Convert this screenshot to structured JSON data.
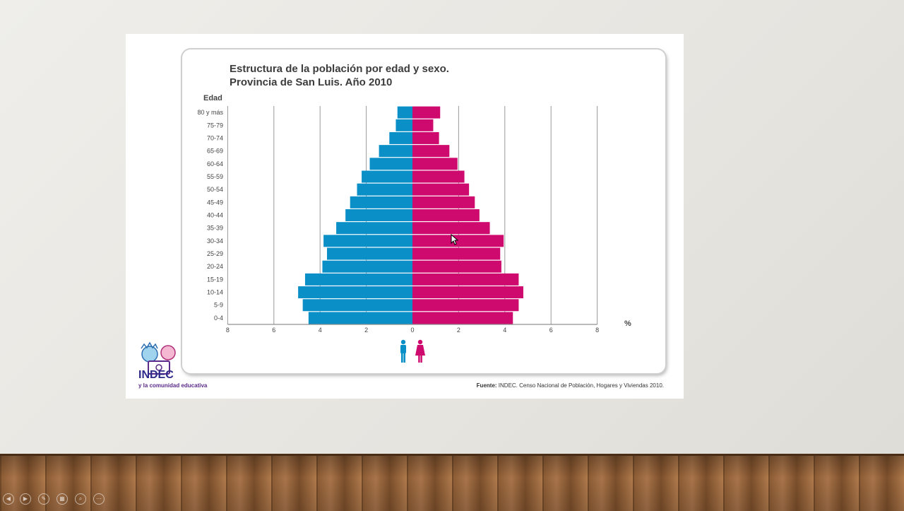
{
  "slide": {
    "title_line1": "Estructura de la población por edad y sexo.",
    "title_line2": "Provincia de San Luis. Año 2010",
    "source_bold": "Fuente:",
    "source_text": " INDEC. Censo Nacional de Población, Hogares y Viviendas 2010.",
    "logo_name": "INDEC",
    "logo_sub": "y la comunidad educativa"
  },
  "colors": {
    "male": "#0b8fc7",
    "female": "#cf0a6e",
    "grid": "#9a9a9a"
  },
  "icons": [
    "male-figure-icon",
    "female-figure-icon",
    "prev-icon",
    "next-icon",
    "pen-icon",
    "slides-icon",
    "zoom-icon",
    "more-icon"
  ],
  "chart_data": {
    "type": "bar",
    "orientation": "horizontal-population-pyramid",
    "title": "Estructura de la población por edad y sexo. Provincia de San Luis. Año 2010",
    "ylabel": "Edad",
    "xlabel": "%",
    "xlim": [
      -8,
      8
    ],
    "x_ticks": [
      "8",
      "6",
      "4",
      "2",
      "0",
      "2",
      "4",
      "6",
      "8"
    ],
    "categories": [
      "80 y más",
      "75-79",
      "70-74",
      "65-69",
      "60-64",
      "55-59",
      "50-54",
      "45-49",
      "40-44",
      "35-39",
      "30-34",
      "25-29",
      "20-24",
      "15-19",
      "10-14",
      "5-9",
      "0-4"
    ],
    "series": [
      {
        "values": [
          0.65,
          0.72,
          1.0,
          1.45,
          1.85,
          2.2,
          2.4,
          2.7,
          2.9,
          3.3,
          3.85,
          3.7,
          3.9,
          4.65,
          4.95,
          4.75,
          4.5
        ]
      },
      {
        "values": [
          1.2,
          0.9,
          1.15,
          1.6,
          1.95,
          2.25,
          2.45,
          2.7,
          2.9,
          3.35,
          3.95,
          3.8,
          3.85,
          4.6,
          4.8,
          4.6,
          4.35
        ]
      }
    ],
    "grid": true,
    "legend": "bottom-center icons"
  }
}
